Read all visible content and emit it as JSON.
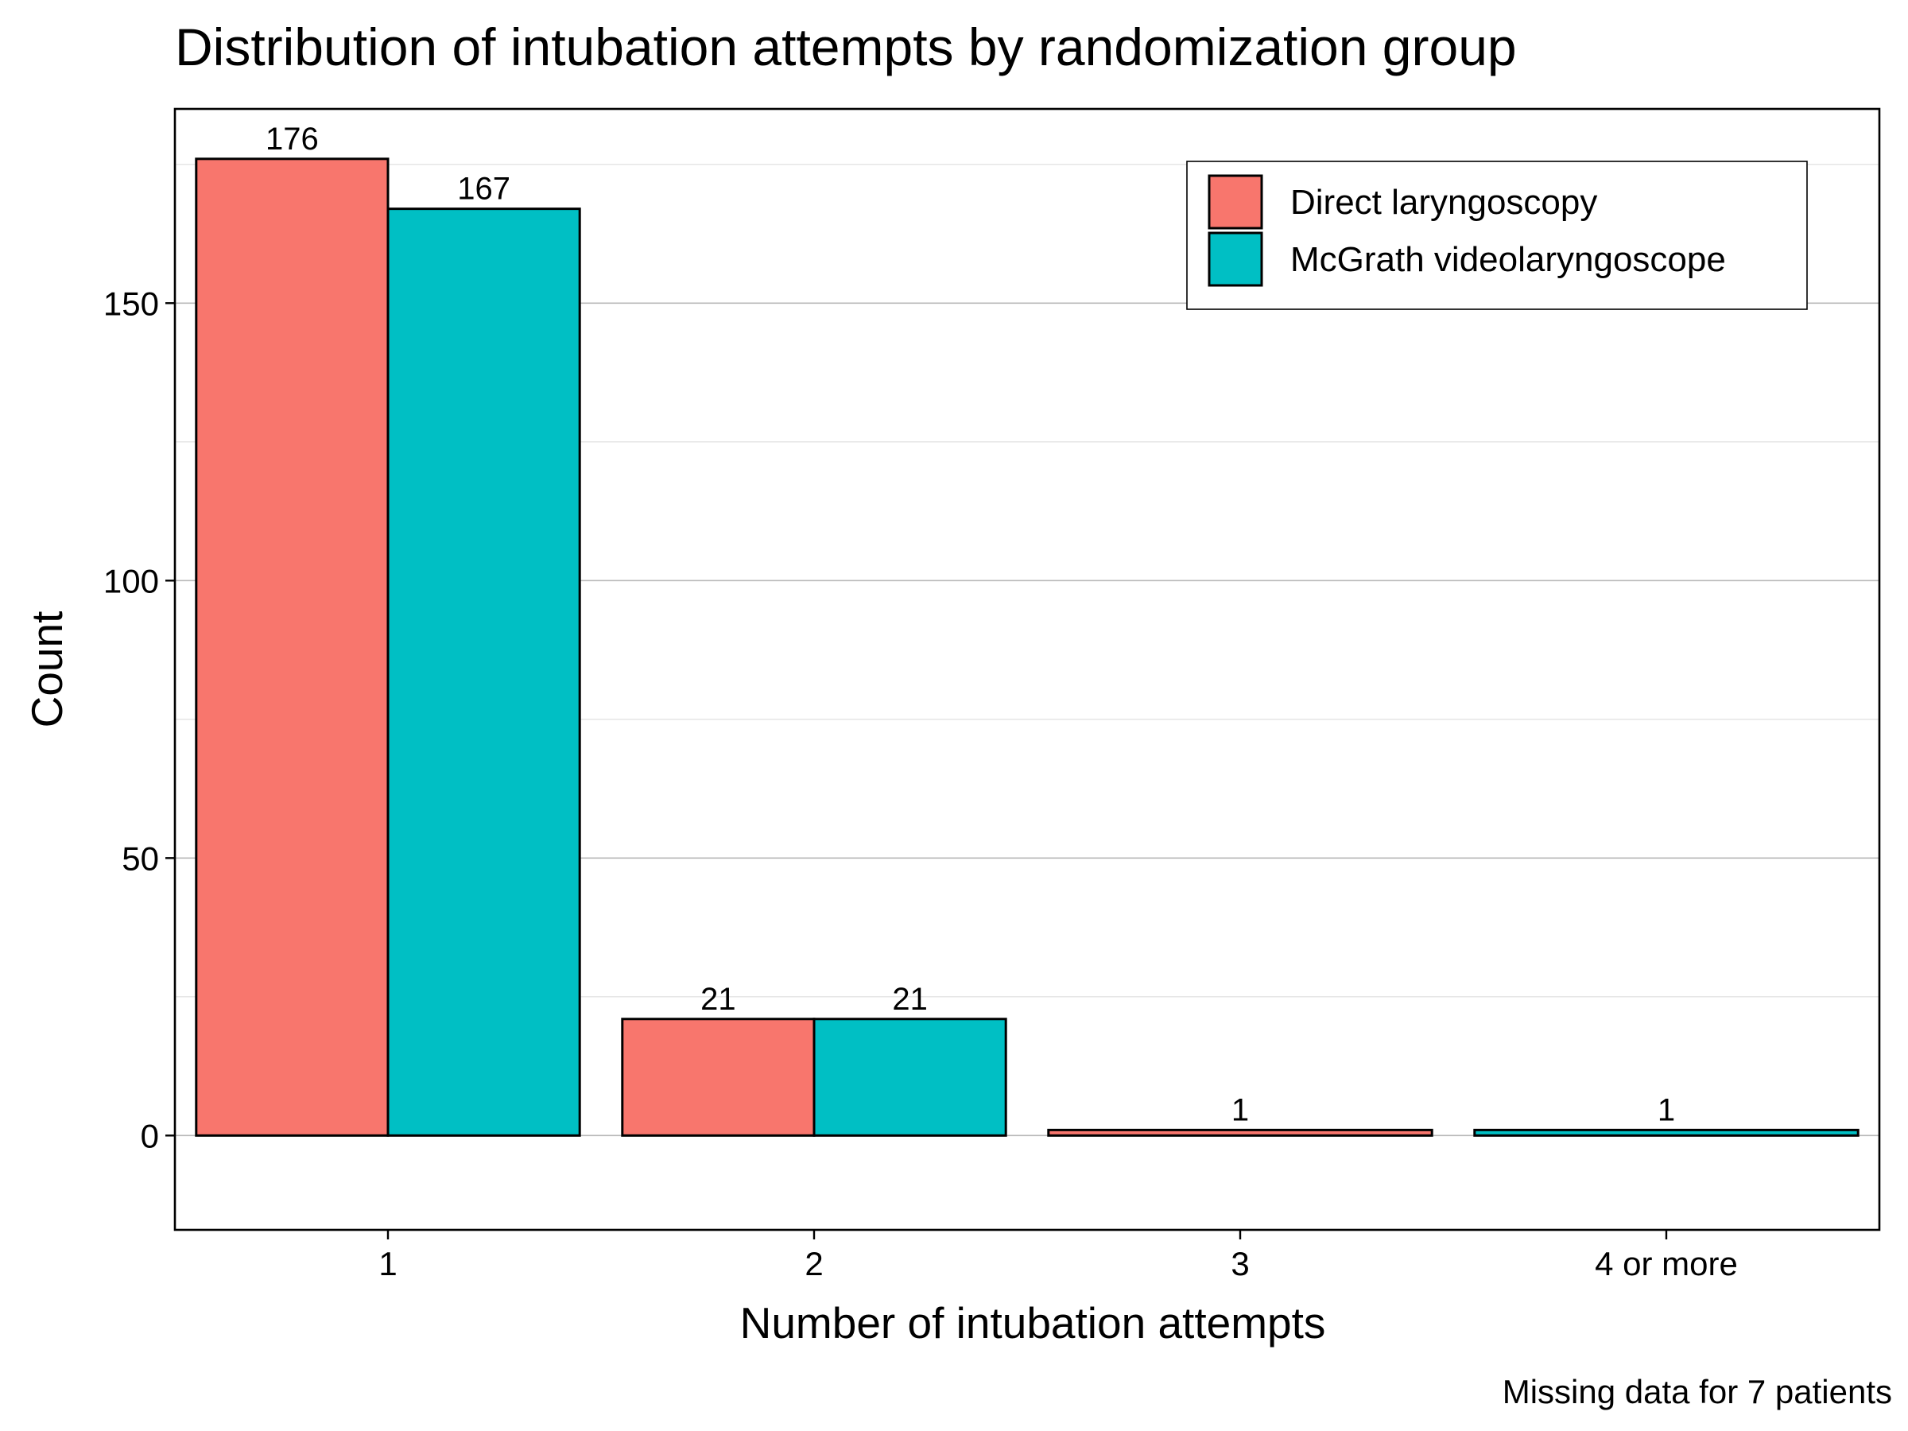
{
  "chart_data": {
    "type": "bar",
    "title": "Distribution of intubation attempts by randomization group",
    "xlabel": "Number of intubation attempts",
    "ylabel": "Count",
    "caption": "Missing data for 7 patients",
    "ylim": [
      -17,
      185
    ],
    "y_ticks": [
      0,
      50,
      100,
      150
    ],
    "y_minor_ticks": [
      25,
      75,
      125,
      175
    ],
    "grid": true,
    "legend_position": "top-right",
    "categories": [
      "1",
      "2",
      "3",
      "4 or more"
    ],
    "series": [
      {
        "name": "Direct laryngoscopy",
        "color": "#F8766D"
      },
      {
        "name": "McGrath videolaryngoscope",
        "color": "#00BFC4"
      }
    ],
    "bars": [
      {
        "category": "1",
        "series": "Direct laryngoscopy",
        "value": 176,
        "label": "176",
        "slot": 0,
        "slots": 2
      },
      {
        "category": "1",
        "series": "McGrath videolaryngoscope",
        "value": 167,
        "label": "167",
        "slot": 1,
        "slots": 2
      },
      {
        "category": "2",
        "series": "Direct laryngoscopy",
        "value": 21,
        "label": "21",
        "slot": 0,
        "slots": 2
      },
      {
        "category": "2",
        "series": "McGrath videolaryngoscope",
        "value": 21,
        "label": "21",
        "slot": 1,
        "slots": 2
      },
      {
        "category": "3",
        "series": "Direct laryngoscopy",
        "value": 1,
        "label": "1",
        "slot": 0,
        "slots": 1
      },
      {
        "category": "4 or more",
        "series": "McGrath videolaryngoscope",
        "value": 1,
        "label": "1",
        "slot": 0,
        "slots": 1
      }
    ]
  }
}
